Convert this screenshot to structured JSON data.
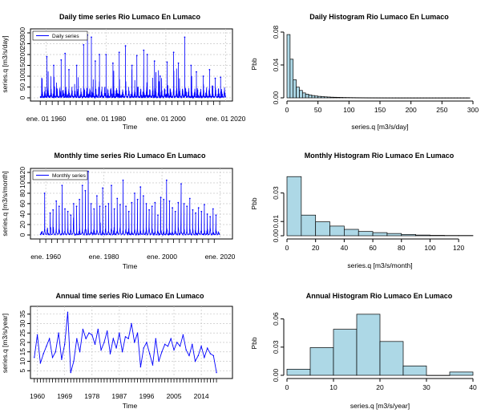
{
  "panels": [
    {
      "id": "daily-ts",
      "type": "timeseries",
      "title": "Daily time series Rio Lumaco En Lumaco",
      "xlabel": "Time",
      "ylabel": "series.q [m3/s/day]",
      "legend": "Daily series",
      "legend_position": "top-left",
      "color": "#0000ff",
      "xlim": [
        1955,
        2022
      ],
      "ylim": [
        0,
        300
      ],
      "yticks": [
        0,
        50,
        100,
        150,
        200,
        250,
        300
      ],
      "xticks": [
        {
          "label": "ene. 01 1960",
          "value": 1960
        },
        {
          "label": "ene. 01 1980",
          "value": 1980
        },
        {
          "label": "ene. 01 2000",
          "value": 2000
        },
        {
          "label": "ene. 01 2020",
          "value": 2020
        }
      ],
      "data_range": [
        1958,
        2019
      ],
      "peaks": [
        {
          "x": 1960.2,
          "y": 190
        },
        {
          "x": 1962.5,
          "y": 150
        },
        {
          "x": 1965.0,
          "y": 175
        },
        {
          "x": 1966.3,
          "y": 205
        },
        {
          "x": 1967.6,
          "y": 130
        },
        {
          "x": 1970.2,
          "y": 150
        },
        {
          "x": 1972.5,
          "y": 245
        },
        {
          "x": 1973.8,
          "y": 290
        },
        {
          "x": 1975.1,
          "y": 280
        },
        {
          "x": 1976.4,
          "y": 170
        },
        {
          "x": 1977.8,
          "y": 200
        },
        {
          "x": 1980.0,
          "y": 200
        },
        {
          "x": 1982.3,
          "y": 160
        },
        {
          "x": 1984.4,
          "y": 210
        },
        {
          "x": 1986.5,
          "y": 240
        },
        {
          "x": 1988.7,
          "y": 150
        },
        {
          "x": 1990.3,
          "y": 195
        },
        {
          "x": 1992.6,
          "y": 220
        },
        {
          "x": 1993.8,
          "y": 200
        },
        {
          "x": 1996.2,
          "y": 170
        },
        {
          "x": 1998.1,
          "y": 100
        },
        {
          "x": 2000.4,
          "y": 165
        },
        {
          "x": 2002.6,
          "y": 210
        },
        {
          "x": 2004.2,
          "y": 160
        },
        {
          "x": 2006.3,
          "y": 280
        },
        {
          "x": 2008.4,
          "y": 150
        },
        {
          "x": 2010.2,
          "y": 120
        },
        {
          "x": 2012.5,
          "y": 100
        },
        {
          "x": 2014.6,
          "y": 130
        },
        {
          "x": 2016.5,
          "y": 90
        },
        {
          "x": 2018.3,
          "y": 95
        }
      ]
    },
    {
      "id": "daily-hist",
      "type": "histogram",
      "title": "Daily Histogram Rio Lumaco En Lumaco",
      "xlabel": "series.q [m3/s/day]",
      "ylabel": "Pbb",
      "fill": "#add8e6",
      "xlim": [
        0,
        300
      ],
      "ylim": [
        0,
        0.08
      ],
      "xticks": [
        0,
        50,
        100,
        150,
        200,
        250,
        300
      ],
      "yticks": [
        0,
        0.04,
        0.08
      ],
      "bin_edges": [
        0,
        5,
        10,
        15,
        20,
        25,
        30,
        35,
        40,
        45,
        50,
        55,
        60,
        65,
        70,
        75,
        80,
        85,
        90,
        95,
        100,
        105,
        110,
        115,
        120,
        125,
        130,
        135,
        140,
        145,
        150,
        155,
        160,
        165,
        170,
        175,
        180,
        185,
        190,
        195,
        200,
        205,
        210,
        215,
        220,
        225,
        230,
        235,
        240,
        245,
        250,
        255,
        260,
        265,
        270,
        275,
        280,
        285,
        290,
        295
      ],
      "density": [
        0.077,
        0.047,
        0.022,
        0.013,
        0.009,
        0.006,
        0.0045,
        0.0035,
        0.0028,
        0.0022,
        0.0018,
        0.0015,
        0.0012,
        0.001,
        0.0008,
        0.0007,
        0.0006,
        0.0005,
        0.0004,
        0.00035,
        0.0003,
        0.00025,
        0.0002,
        0.00018,
        0.00015,
        0.00012,
        0.0001,
        9e-05,
        8e-05,
        7e-05,
        6e-05,
        5e-05,
        4e-05,
        4e-05,
        3e-05,
        3e-05,
        2e-05,
        2e-05,
        2e-05,
        2e-05,
        1e-05,
        1e-05,
        1e-05,
        1e-05,
        1e-05,
        1e-05,
        1e-05,
        1e-05,
        1e-05,
        1e-05,
        1e-05,
        1e-05,
        1e-05,
        1e-05,
        1e-05,
        1e-05,
        1e-05,
        1e-05,
        1e-05
      ]
    },
    {
      "id": "monthly-ts",
      "type": "timeseries",
      "title": "Monthly time series Rio Lumaco En Lumaco",
      "xlabel": "Time",
      "ylabel": "series.q [m3/s/month]",
      "legend": "Monthly series",
      "legend_position": "top-left",
      "color": "#0000ff",
      "xlim": [
        1955,
        2024
      ],
      "ylim": [
        0,
        120
      ],
      "yticks": [
        0,
        20,
        40,
        60,
        80,
        100,
        120
      ],
      "xticks": [
        {
          "label": "ene. 1960",
          "value": 1960
        },
        {
          "label": "ene. 1980",
          "value": 1980
        },
        {
          "label": "ene. 2000",
          "value": 2000
        },
        {
          "label": "ene. 2020",
          "value": 2020
        }
      ],
      "data_range": [
        1958,
        2019
      ],
      "peaks": [
        {
          "x": 1959.6,
          "y": 80
        },
        {
          "x": 1961.5,
          "y": 42
        },
        {
          "x": 1962.5,
          "y": 48
        },
        {
          "x": 1963.6,
          "y": 65
        },
        {
          "x": 1964.6,
          "y": 55
        },
        {
          "x": 1965.6,
          "y": 95
        },
        {
          "x": 1966.6,
          "y": 50
        },
        {
          "x": 1967.6,
          "y": 45
        },
        {
          "x": 1968.6,
          "y": 38
        },
        {
          "x": 1969.6,
          "y": 60
        },
        {
          "x": 1970.6,
          "y": 55
        },
        {
          "x": 1971.6,
          "y": 68
        },
        {
          "x": 1972.6,
          "y": 95
        },
        {
          "x": 1973.6,
          "y": 85
        },
        {
          "x": 1974.6,
          "y": 122
        },
        {
          "x": 1975.6,
          "y": 60
        },
        {
          "x": 1976.6,
          "y": 50
        },
        {
          "x": 1977.6,
          "y": 75
        },
        {
          "x": 1978.6,
          "y": 55
        },
        {
          "x": 1979.6,
          "y": 90
        },
        {
          "x": 1980.6,
          "y": 55
        },
        {
          "x": 1981.6,
          "y": 60
        },
        {
          "x": 1982.6,
          "y": 95
        },
        {
          "x": 1983.6,
          "y": 50
        },
        {
          "x": 1984.6,
          "y": 70
        },
        {
          "x": 1985.6,
          "y": 58
        },
        {
          "x": 1986.6,
          "y": 105
        },
        {
          "x": 1987.6,
          "y": 55
        },
        {
          "x": 1988.6,
          "y": 45
        },
        {
          "x": 1989.6,
          "y": 62
        },
        {
          "x": 1990.6,
          "y": 80
        },
        {
          "x": 1991.6,
          "y": 68
        },
        {
          "x": 1992.6,
          "y": 92
        },
        {
          "x": 1993.6,
          "y": 75
        },
        {
          "x": 1994.6,
          "y": 60
        },
        {
          "x": 1995.6,
          "y": 48
        },
        {
          "x": 1996.6,
          "y": 55
        },
        {
          "x": 1997.6,
          "y": 62
        },
        {
          "x": 1998.6,
          "y": 38
        },
        {
          "x": 1999.6,
          "y": 72
        },
        {
          "x": 2000.6,
          "y": 68
        },
        {
          "x": 2001.6,
          "y": 105
        },
        {
          "x": 2002.6,
          "y": 65
        },
        {
          "x": 2003.6,
          "y": 52
        },
        {
          "x": 2004.6,
          "y": 45
        },
        {
          "x": 2005.6,
          "y": 62
        },
        {
          "x": 2006.6,
          "y": 98
        },
        {
          "x": 2007.6,
          "y": 60
        },
        {
          "x": 2008.6,
          "y": 55
        },
        {
          "x": 2009.6,
          "y": 70
        },
        {
          "x": 2010.6,
          "y": 48
        },
        {
          "x": 2011.6,
          "y": 42
        },
        {
          "x": 2012.6,
          "y": 52
        },
        {
          "x": 2013.6,
          "y": 45
        },
        {
          "x": 2014.6,
          "y": 58
        },
        {
          "x": 2015.6,
          "y": 40
        },
        {
          "x": 2016.6,
          "y": 35
        },
        {
          "x": 2017.6,
          "y": 50
        },
        {
          "x": 2018.6,
          "y": 38
        }
      ]
    },
    {
      "id": "monthly-hist",
      "type": "histogram",
      "title": "Monthly Histogram Rio Lumaco En Lumaco",
      "xlabel": "series.q [m3/s/month]",
      "ylabel": "Pbb",
      "fill": "#add8e6",
      "xlim": [
        0,
        130
      ],
      "ylim": [
        0,
        0.045
      ],
      "xticks": [
        0,
        20,
        40,
        60,
        80,
        100,
        120
      ],
      "yticks": [
        0,
        0.01,
        0.03
      ],
      "bin_edges": [
        0,
        10,
        20,
        30,
        40,
        50,
        60,
        70,
        80,
        90,
        100,
        110,
        120,
        130
      ],
      "density": [
        0.0415,
        0.0145,
        0.0098,
        0.0068,
        0.0045,
        0.003,
        0.0022,
        0.0016,
        0.0009,
        0.0005,
        0.0003,
        0.0002,
        0.0002
      ]
    },
    {
      "id": "annual-ts",
      "type": "line",
      "title": "Annual time series Rio Lumaco En Lumaco",
      "xlabel": "Time",
      "ylabel": "series.q [m3/s/year]",
      "color": "#0000ff",
      "xlim": [
        1958,
        2024
      ],
      "ylim": [
        3,
        37
      ],
      "yticks": [
        5,
        10,
        15,
        20,
        25,
        30,
        35
      ],
      "xticks": [
        1960,
        1969,
        1978,
        1987,
        1996,
        2005,
        2014
      ],
      "x": [
        1959,
        1960,
        1961,
        1962,
        1963,
        1964,
        1965,
        1966,
        1967,
        1968,
        1969,
        1970,
        1971,
        1972,
        1973,
        1974,
        1975,
        1976,
        1977,
        1978,
        1979,
        1980,
        1981,
        1982,
        1983,
        1984,
        1985,
        1986,
        1987,
        1988,
        1989,
        1990,
        1991,
        1992,
        1993,
        1994,
        1995,
        1996,
        1997,
        1998,
        1999,
        2000,
        2001,
        2002,
        2003,
        2004,
        2005,
        2006,
        2007,
        2008,
        2009,
        2010,
        2011,
        2012,
        2013,
        2014,
        2015,
        2016,
        2017,
        2018,
        2019
      ],
      "y": [
        12,
        24,
        9,
        14,
        18,
        22,
        12,
        15,
        25,
        11,
        19,
        36,
        4,
        10,
        22,
        15,
        27,
        22,
        25,
        24,
        19,
        27,
        16,
        20,
        26,
        14,
        22,
        17,
        25,
        15,
        23,
        22,
        30,
        20,
        25,
        7,
        17,
        20,
        14,
        8,
        22,
        10,
        15,
        19,
        18,
        22,
        16,
        20,
        18,
        24,
        16,
        13,
        19,
        10,
        13,
        18,
        12,
        17,
        14,
        13,
        4
      ]
    },
    {
      "id": "annual-hist",
      "type": "histogram",
      "title": "Annual Histogram Rio Lumaco En Lumaco",
      "xlabel": "series.q [m3/s/year]",
      "ylabel": "Pbb",
      "fill": "#add8e6",
      "xlim": [
        0,
        40
      ],
      "ylim": [
        0,
        0.07
      ],
      "xticks": [
        0,
        10,
        20,
        30,
        40
      ],
      "yticks": [
        0,
        0.03,
        0.06
      ],
      "bin_edges": [
        0,
        5,
        10,
        15,
        20,
        25,
        30,
        35,
        40
      ],
      "density": [
        0.0065,
        0.0295,
        0.049,
        0.065,
        0.036,
        0.01,
        0.0,
        0.0035
      ]
    }
  ]
}
